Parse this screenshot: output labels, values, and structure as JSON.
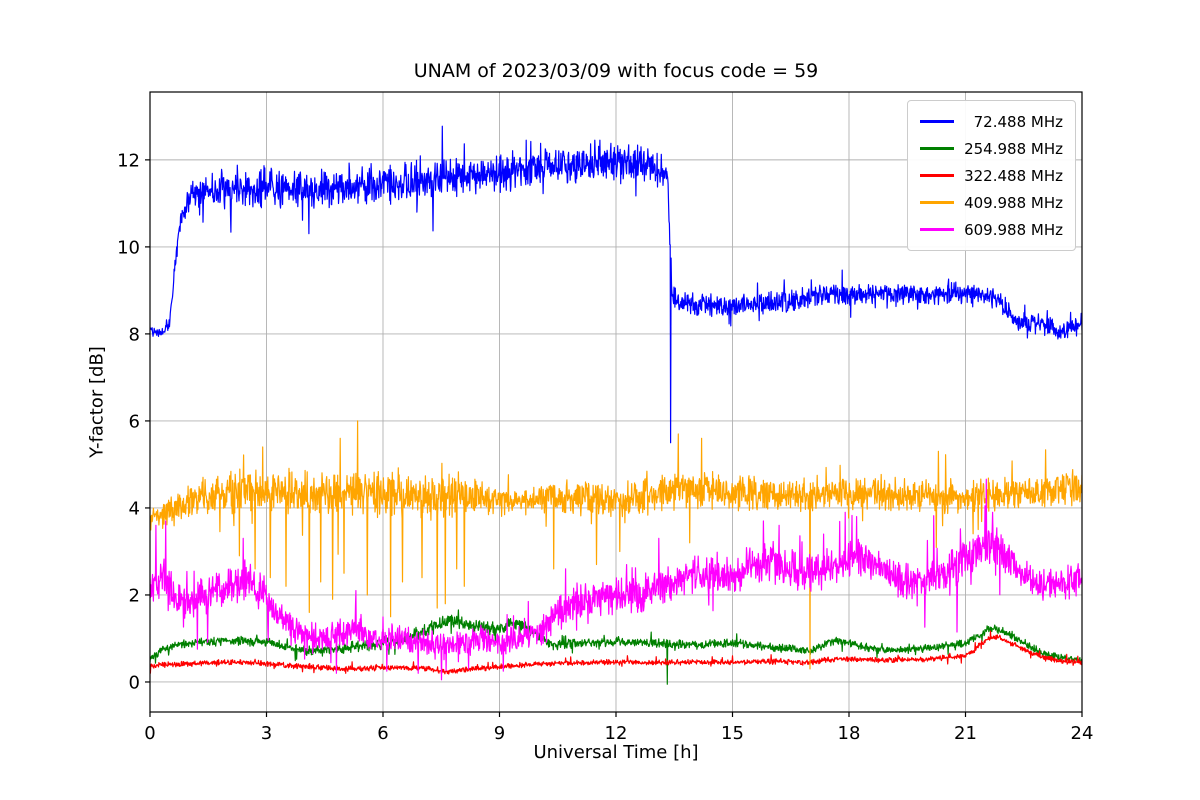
{
  "chart_data": {
    "type": "line",
    "title": "UNAM of 2023/03/09 with focus code = 59",
    "xlabel": "Universal Time [h]",
    "ylabel": "Y-factor [dB]",
    "xlim": [
      0,
      24
    ],
    "ylim": [
      -0.69,
      13.56
    ],
    "xticks": [
      0,
      3,
      6,
      9,
      12,
      15,
      18,
      21,
      24
    ],
    "yticks": [
      0,
      2,
      4,
      6,
      8,
      10,
      12
    ],
    "grid": true,
    "grid_color": "#b0b0b0",
    "spine_color": "#000000",
    "legend_position": "upper right",
    "series": [
      {
        "name": "  72.488 MHz",
        "color": "#0000ff",
        "seed": 42,
        "keypoints": [
          [
            0,
            8.15
          ],
          [
            0.3,
            7.98
          ],
          [
            0.5,
            8.25
          ],
          [
            0.65,
            9.6
          ],
          [
            0.8,
            10.7
          ],
          [
            1.0,
            11.1
          ],
          [
            1.3,
            11.25
          ],
          [
            2,
            11.3
          ],
          [
            3,
            11.35
          ],
          [
            4,
            11.3
          ],
          [
            5,
            11.4
          ],
          [
            6,
            11.45
          ],
          [
            7,
            11.5
          ],
          [
            8,
            11.62
          ],
          [
            9,
            11.72
          ],
          [
            10,
            11.8
          ],
          [
            11,
            11.9
          ],
          [
            12,
            11.95
          ],
          [
            12.7,
            11.9
          ],
          [
            13.2,
            11.7
          ],
          [
            13.33,
            11.55
          ],
          [
            13.45,
            8.8
          ],
          [
            14,
            8.7
          ],
          [
            15,
            8.62
          ],
          [
            16,
            8.72
          ],
          [
            17,
            8.82
          ],
          [
            17.6,
            8.95
          ],
          [
            18,
            8.88
          ],
          [
            19,
            8.95
          ],
          [
            20,
            8.9
          ],
          [
            21,
            8.95
          ],
          [
            21.6,
            8.88
          ],
          [
            21.95,
            8.7
          ],
          [
            22.3,
            8.3
          ],
          [
            23,
            8.2
          ],
          [
            23.4,
            8.05
          ],
          [
            23.8,
            8.15
          ],
          [
            24,
            8.25
          ]
        ],
        "noise": [
          [
            0,
            0.12
          ],
          [
            0.5,
            0.15
          ],
          [
            0.9,
            0.3
          ],
          [
            1.5,
            0.52
          ],
          [
            12,
            0.5
          ],
          [
            13.3,
            0.45
          ],
          [
            13.6,
            0.28
          ],
          [
            21,
            0.28
          ],
          [
            22.5,
            0.26
          ],
          [
            24,
            0.26
          ]
        ],
        "spikes": [
          [
            13.41,
            5.5
          ]
        ]
      },
      {
        "name": "254.988 MHz",
        "color": "#008000",
        "seed": 7,
        "keypoints": [
          [
            0,
            0.55
          ],
          [
            0.5,
            0.8
          ],
          [
            1,
            0.9
          ],
          [
            2,
            0.95
          ],
          [
            3,
            0.92
          ],
          [
            3.5,
            0.8
          ],
          [
            4,
            0.72
          ],
          [
            5,
            0.78
          ],
          [
            6,
            0.9
          ],
          [
            6.5,
            1.0
          ],
          [
            7,
            1.15
          ],
          [
            7.5,
            1.35
          ],
          [
            8,
            1.4
          ],
          [
            8.3,
            1.3
          ],
          [
            8.7,
            1.25
          ],
          [
            9,
            1.2
          ],
          [
            9.3,
            1.35
          ],
          [
            9.6,
            1.3
          ],
          [
            10,
            1.05
          ],
          [
            10.4,
            0.85
          ],
          [
            11,
            0.9
          ],
          [
            12,
            0.92
          ],
          [
            13,
            0.9
          ],
          [
            14,
            0.85
          ],
          [
            15,
            0.9
          ],
          [
            16,
            0.8
          ],
          [
            17,
            0.72
          ],
          [
            17.6,
            0.95
          ],
          [
            18,
            0.9
          ],
          [
            18.5,
            0.78
          ],
          [
            19,
            0.72
          ],
          [
            20,
            0.78
          ],
          [
            21,
            0.9
          ],
          [
            21.4,
            1.1
          ],
          [
            21.7,
            1.25
          ],
          [
            22,
            1.15
          ],
          [
            22.5,
            0.9
          ],
          [
            23,
            0.65
          ],
          [
            23.5,
            0.55
          ],
          [
            24,
            0.5
          ]
        ],
        "noise": [
          [
            0,
            0.1
          ],
          [
            3,
            0.12
          ],
          [
            7,
            0.18
          ],
          [
            9,
            0.18
          ],
          [
            10,
            0.12
          ],
          [
            24,
            0.1
          ]
        ],
        "spikes": [
          [
            13.32,
            -0.05
          ]
        ]
      },
      {
        "name": "322.488 MHz",
        "color": "#ff0000",
        "seed": 13,
        "keypoints": [
          [
            0,
            0.38
          ],
          [
            1,
            0.42
          ],
          [
            2,
            0.46
          ],
          [
            3,
            0.42
          ],
          [
            4,
            0.35
          ],
          [
            5,
            0.3
          ],
          [
            6,
            0.33
          ],
          [
            7,
            0.32
          ],
          [
            7.7,
            0.22
          ],
          [
            8,
            0.28
          ],
          [
            9,
            0.35
          ],
          [
            10,
            0.42
          ],
          [
            11,
            0.44
          ],
          [
            12,
            0.46
          ],
          [
            13,
            0.44
          ],
          [
            14,
            0.46
          ],
          [
            15,
            0.45
          ],
          [
            16,
            0.47
          ],
          [
            17,
            0.45
          ],
          [
            17.8,
            0.55
          ],
          [
            18,
            0.52
          ],
          [
            19,
            0.5
          ],
          [
            20,
            0.52
          ],
          [
            21,
            0.6
          ],
          [
            21.5,
            0.95
          ],
          [
            21.8,
            1.05
          ],
          [
            22,
            0.95
          ],
          [
            22.5,
            0.75
          ],
          [
            23,
            0.55
          ],
          [
            23.5,
            0.48
          ],
          [
            24,
            0.45
          ]
        ],
        "noise": [
          [
            0,
            0.07
          ],
          [
            24,
            0.07
          ]
        ],
        "spikes": []
      },
      {
        "name": "409.988 MHz",
        "color": "#ffa500",
        "seed": 99,
        "keypoints": [
          [
            0,
            3.8
          ],
          [
            0.5,
            3.9
          ],
          [
            1,
            4.15
          ],
          [
            1.5,
            4.3
          ],
          [
            2,
            4.35
          ],
          [
            3,
            4.4
          ],
          [
            4,
            4.3
          ],
          [
            5,
            4.35
          ],
          [
            5.5,
            4.4
          ],
          [
            6,
            4.3
          ],
          [
            7,
            4.25
          ],
          [
            8,
            4.3
          ],
          [
            9,
            4.15
          ],
          [
            10,
            4.2
          ],
          [
            11,
            4.25
          ],
          [
            12,
            4.2
          ],
          [
            13,
            4.3
          ],
          [
            13.5,
            4.5
          ],
          [
            14,
            4.4
          ],
          [
            15,
            4.35
          ],
          [
            16,
            4.3
          ],
          [
            17,
            4.3
          ],
          [
            18,
            4.35
          ],
          [
            19,
            4.3
          ],
          [
            20,
            4.25
          ],
          [
            21,
            4.3
          ],
          [
            22,
            4.3
          ],
          [
            23,
            4.35
          ],
          [
            24,
            4.5
          ]
        ],
        "noise": [
          [
            0,
            0.35
          ],
          [
            1,
            0.45
          ],
          [
            2,
            0.55
          ],
          [
            3,
            0.6
          ],
          [
            5,
            0.62
          ],
          [
            7,
            0.6
          ],
          [
            8,
            0.5
          ],
          [
            9,
            0.38
          ],
          [
            10,
            0.42
          ],
          [
            11,
            0.45
          ],
          [
            12,
            0.42
          ],
          [
            13,
            0.5
          ],
          [
            14,
            0.5
          ],
          [
            15,
            0.45
          ],
          [
            18,
            0.45
          ],
          [
            21,
            0.45
          ],
          [
            23,
            0.42
          ],
          [
            24,
            0.45
          ]
        ],
        "spikes": [
          [
            2.3,
            2.9
          ],
          [
            2.7,
            2.6
          ],
          [
            2.9,
            5.4
          ],
          [
            3.1,
            2.4
          ],
          [
            3.5,
            2.2
          ],
          [
            4.1,
            1.6
          ],
          [
            4.4,
            2.3
          ],
          [
            4.7,
            1.9
          ],
          [
            4.9,
            5.6
          ],
          [
            5.0,
            2.5
          ],
          [
            5.35,
            6.0
          ],
          [
            5.6,
            2.0
          ],
          [
            6.2,
            1.5
          ],
          [
            6.5,
            2.3
          ],
          [
            7.0,
            2.4
          ],
          [
            7.4,
            1.7
          ],
          [
            7.6,
            1.8
          ],
          [
            7.9,
            2.6
          ],
          [
            8.1,
            2.2
          ],
          [
            10.4,
            2.6
          ],
          [
            11.5,
            2.7
          ],
          [
            12.1,
            3.0
          ],
          [
            13.6,
            5.7
          ],
          [
            13.9,
            3.2
          ],
          [
            14.2,
            5.6
          ],
          [
            17.0,
            0.3
          ]
        ]
      },
      {
        "name": "609.988 MHz",
        "color": "#ff00ff",
        "seed": 5,
        "keypoints": [
          [
            0,
            2.1
          ],
          [
            0.3,
            2.5
          ],
          [
            0.6,
            2.1
          ],
          [
            1,
            1.8
          ],
          [
            1.5,
            2.0
          ],
          [
            2,
            2.2
          ],
          [
            2.5,
            2.35
          ],
          [
            3,
            1.95
          ],
          [
            3.3,
            1.6
          ],
          [
            3.6,
            1.25
          ],
          [
            4,
            1.05
          ],
          [
            4.5,
            0.95
          ],
          [
            5,
            1.15
          ],
          [
            5.3,
            1.3
          ],
          [
            5.6,
            1.05
          ],
          [
            6,
            0.9
          ],
          [
            6.3,
            1.05
          ],
          [
            6.6,
            1.0
          ],
          [
            7,
            0.9
          ],
          [
            7.5,
            0.8
          ],
          [
            8,
            0.9
          ],
          [
            8.5,
            1.0
          ],
          [
            9,
            0.9
          ],
          [
            9.5,
            1.0
          ],
          [
            10,
            1.15
          ],
          [
            10.3,
            1.4
          ],
          [
            10.6,
            1.65
          ],
          [
            11,
            1.85
          ],
          [
            11.5,
            1.95
          ],
          [
            12,
            2.05
          ],
          [
            12.5,
            1.95
          ],
          [
            13,
            2.15
          ],
          [
            13.5,
            2.35
          ],
          [
            14,
            2.5
          ],
          [
            14.5,
            2.55
          ],
          [
            15,
            2.45
          ],
          [
            15.5,
            2.65
          ],
          [
            16,
            2.75
          ],
          [
            16.5,
            2.6
          ],
          [
            17,
            2.5
          ],
          [
            17.5,
            2.6
          ],
          [
            18,
            2.8
          ],
          [
            18.3,
            2.9
          ],
          [
            18.7,
            2.7
          ],
          [
            19,
            2.5
          ],
          [
            19.5,
            2.3
          ],
          [
            20,
            2.35
          ],
          [
            20.5,
            2.55
          ],
          [
            21,
            2.75
          ],
          [
            21.3,
            3.0
          ],
          [
            21.6,
            3.2
          ],
          [
            21.9,
            3.0
          ],
          [
            22.2,
            2.7
          ],
          [
            22.5,
            2.45
          ],
          [
            23,
            2.2
          ],
          [
            23.5,
            2.3
          ],
          [
            24,
            2.4
          ]
        ],
        "noise": [
          [
            0,
            0.6
          ],
          [
            1,
            0.5
          ],
          [
            2,
            0.55
          ],
          [
            3,
            0.5
          ],
          [
            4,
            0.4
          ],
          [
            5,
            0.4
          ],
          [
            6,
            0.35
          ],
          [
            8,
            0.35
          ],
          [
            9,
            0.35
          ],
          [
            10,
            0.4
          ],
          [
            11,
            0.5
          ],
          [
            13,
            0.5
          ],
          [
            15,
            0.5
          ],
          [
            16,
            0.55
          ],
          [
            17,
            0.5
          ],
          [
            18,
            0.55
          ],
          [
            19,
            0.5
          ],
          [
            20,
            0.5
          ],
          [
            21,
            0.55
          ],
          [
            21.6,
            0.6
          ],
          [
            22,
            0.5
          ],
          [
            23,
            0.45
          ],
          [
            24,
            0.45
          ]
        ],
        "spikes": [
          [
            0.15,
            3.6
          ],
          [
            0.4,
            3.7
          ],
          [
            2.4,
            3.3
          ],
          [
            4.8,
            0.2
          ],
          [
            5.3,
            2.1
          ],
          [
            6.1,
            0.25
          ],
          [
            6.9,
            0.2
          ],
          [
            7.5,
            0.05
          ],
          [
            8.2,
            0.3
          ],
          [
            9.1,
            0.25
          ],
          [
            10.7,
            2.6
          ],
          [
            13.1,
            3.3
          ],
          [
            15.8,
            3.7
          ],
          [
            16.2,
            3.6
          ],
          [
            17.9,
            3.9
          ],
          [
            18.2,
            3.8
          ],
          [
            21.5,
            4.05
          ],
          [
            21.7,
            3.9
          ]
        ]
      }
    ]
  }
}
